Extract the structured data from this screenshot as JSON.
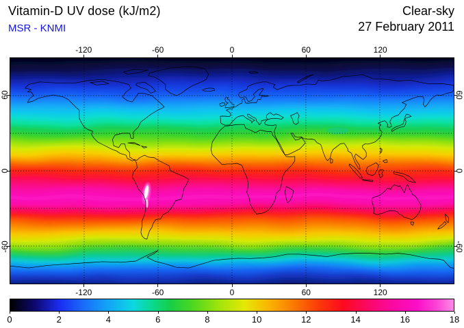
{
  "header": {
    "title": "Vitamin-D UV dose (kJ/m2)",
    "source": "MSR - KNMI",
    "source_color": "#1414e6",
    "condition": "Clear-sky",
    "date": "27 February 2011"
  },
  "map": {
    "lon_ticks": [
      "-120",
      "-60",
      "0",
      "60",
      "120"
    ],
    "lat_ticks": [
      "60",
      "0",
      "-60"
    ],
    "zonal_stops": [
      {
        "p": 0,
        "c": "#020207"
      },
      {
        "p": 6.5,
        "c": "#03031a"
      },
      {
        "p": 10.5,
        "c": "#0a0e4a"
      },
      {
        "p": 13.5,
        "c": "#101c90"
      },
      {
        "p": 16.7,
        "c": "#1632d4"
      },
      {
        "p": 19.5,
        "c": "#1550ee"
      },
      {
        "p": 22,
        "c": "#1a74fa"
      },
      {
        "p": 24.5,
        "c": "#18a0f8"
      },
      {
        "p": 27,
        "c": "#10c4f0"
      },
      {
        "p": 29.5,
        "c": "#0adcd2"
      },
      {
        "p": 31.5,
        "c": "#0ce09e"
      },
      {
        "p": 33.5,
        "c": "#14d05a"
      },
      {
        "p": 36,
        "c": "#3cd42c"
      },
      {
        "p": 38.5,
        "c": "#8ce010"
      },
      {
        "p": 41,
        "c": "#d4ea06"
      },
      {
        "p": 43.5,
        "c": "#f8ce04"
      },
      {
        "p": 45.5,
        "c": "#fa9e02"
      },
      {
        "p": 47.5,
        "c": "#fa6604"
      },
      {
        "p": 50,
        "c": "#fb2e0e"
      },
      {
        "p": 52.5,
        "c": "#fc1432"
      },
      {
        "p": 55,
        "c": "#fb0a70"
      },
      {
        "p": 57.5,
        "c": "#fa0aa8"
      },
      {
        "p": 60,
        "c": "#fb14c2"
      },
      {
        "p": 62.5,
        "c": "#fa0aa8"
      },
      {
        "p": 65,
        "c": "#fb0660"
      },
      {
        "p": 67,
        "c": "#fb201e"
      },
      {
        "p": 69,
        "c": "#fb5406"
      },
      {
        "p": 71.5,
        "c": "#fa8e02"
      },
      {
        "p": 74,
        "c": "#f8c604"
      },
      {
        "p": 76.5,
        "c": "#d8e806"
      },
      {
        "p": 78.5,
        "c": "#92de0e"
      },
      {
        "p": 80.5,
        "c": "#3ad03a"
      },
      {
        "p": 82.5,
        "c": "#0ecc88"
      },
      {
        "p": 84.5,
        "c": "#0cc8da"
      },
      {
        "p": 86.5,
        "c": "#1194f4"
      },
      {
        "p": 88.5,
        "c": "#1662f0"
      },
      {
        "p": 91,
        "c": "#1438c6"
      },
      {
        "p": 93.5,
        "c": "#0e228e"
      },
      {
        "p": 96,
        "c": "#071453"
      },
      {
        "p": 100,
        "c": "#03040f"
      }
    ]
  },
  "colorbar": {
    "tick_labels": [
      "0",
      "2",
      "4",
      "6",
      "8",
      "10",
      "12",
      "14",
      "16",
      "18"
    ],
    "min": 0,
    "max": 18,
    "stops": [
      {
        "p": 0,
        "c": "#000000"
      },
      {
        "p": 5.6,
        "c": "#0e0870"
      },
      {
        "p": 11.1,
        "c": "#1a2cf0"
      },
      {
        "p": 16.7,
        "c": "#1a6efa"
      },
      {
        "p": 22.2,
        "c": "#12a6f6"
      },
      {
        "p": 27.8,
        "c": "#0cd8e0"
      },
      {
        "p": 32.2,
        "c": "#0cd88c"
      },
      {
        "p": 36.1,
        "c": "#16ce46"
      },
      {
        "p": 41.7,
        "c": "#54d81c"
      },
      {
        "p": 47.2,
        "c": "#a2e40c"
      },
      {
        "p": 52.8,
        "c": "#e4e806"
      },
      {
        "p": 58.3,
        "c": "#fab402"
      },
      {
        "p": 63.9,
        "c": "#fa7a02"
      },
      {
        "p": 69.4,
        "c": "#fb3c08"
      },
      {
        "p": 75,
        "c": "#fc0a1e"
      },
      {
        "p": 80.6,
        "c": "#fb0864"
      },
      {
        "p": 86.1,
        "c": "#fa0aa0"
      },
      {
        "p": 91.7,
        "c": "#fb0ec8"
      },
      {
        "p": 96.1,
        "c": "#fb44d6"
      },
      {
        "p": 100,
        "c": "#fc8ae4"
      }
    ]
  },
  "chart_data": {
    "type": "heatmap",
    "title": "Vitamin-D UV dose (kJ/m2)",
    "subtitle": "MSR - KNMI",
    "condition": "Clear-sky",
    "date": "27 February 2011",
    "projection": "equirectangular world map with coastlines",
    "lon_range": [
      -180,
      180
    ],
    "lat_range": [
      -90,
      90
    ],
    "lon_axis_ticks": [
      -120,
      -60,
      0,
      60,
      120
    ],
    "lat_axis_ticks": [
      60,
      0,
      -60
    ],
    "graticule_step_deg": 30,
    "colorbar": {
      "min": 0,
      "max": 18,
      "tick_step": 2,
      "units": "kJ/m2",
      "scale": "black-blue-cyan-green-yellow-orange-red-magenta-pink"
    },
    "zonal_mean_profile": {
      "lat": [
        90,
        80,
        70,
        60,
        50,
        40,
        30,
        20,
        10,
        0,
        -10,
        -20,
        -30,
        -40,
        -50,
        -60,
        -70,
        -80,
        -90
      ],
      "dose_kj_m2": [
        0,
        0,
        0.4,
        1.6,
        3.2,
        5.2,
        7.6,
        10.2,
        12.4,
        13.6,
        15.0,
        15.4,
        13.4,
        10.8,
        8.2,
        5.6,
        3.2,
        1.2,
        0.6
      ]
    },
    "notes": "Dose is mostly zonal: black (0) polar night north of ~70N; maximum magenta band ~15-16 kJ/m2 between ~10S and 25S; local maximum ~18 kJ/m2 (white) over the Andes/Altiplano; values decrease to dark blue toward Antarctica."
  }
}
